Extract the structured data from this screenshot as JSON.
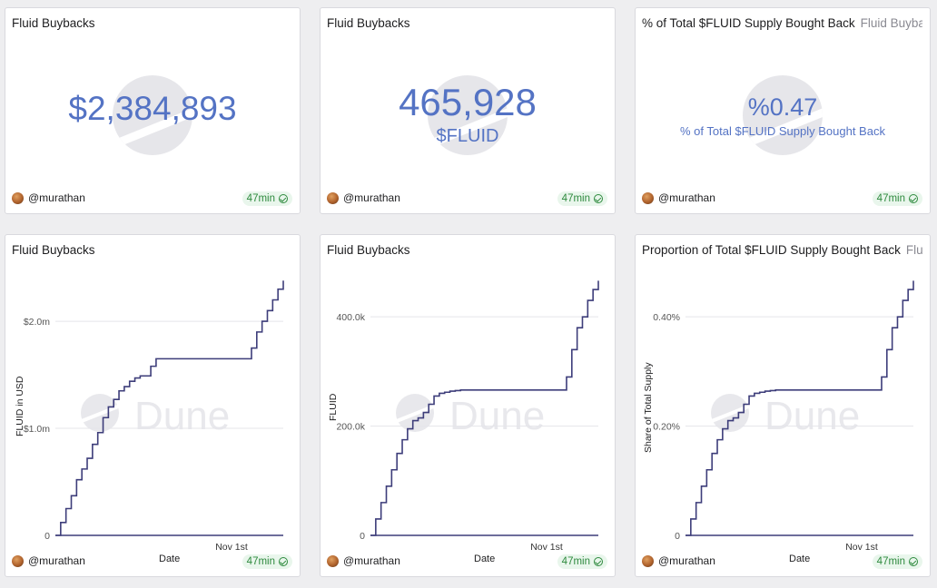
{
  "user": "@murathan",
  "refresh": "47min",
  "watermark": "Dune",
  "counters": [
    {
      "title": "Fluid Buybacks",
      "subtitle": "",
      "value": "$2,384,893",
      "label": ""
    },
    {
      "title": "Fluid Buybacks",
      "subtitle": "",
      "value": "465,928",
      "label": "$FLUID"
    },
    {
      "title": "% of Total $FLUID Supply Bought Back",
      "subtitle": "Fluid Buybacks",
      "value": "%0.47",
      "label": "% of Total $FLUID Supply Bought Back"
    }
  ],
  "chart_data": [
    {
      "type": "line",
      "title": "Fluid Buybacks",
      "subtitle": "",
      "xlabel": "Date",
      "ylabel": "FLUID in USD",
      "x_tick_labels": [
        "Nov 1st"
      ],
      "y_ticks": [
        0,
        1000000,
        2000000
      ],
      "y_tick_labels": [
        "0",
        "$1.0m",
        "$2.0m"
      ],
      "ylim": [
        0,
        2450000
      ],
      "x": [
        0,
        1,
        2,
        3,
        4,
        5,
        6,
        7,
        8,
        9,
        10,
        11,
        12,
        13,
        14,
        15,
        16,
        17,
        18,
        19,
        20,
        21,
        22,
        23,
        24,
        25,
        26,
        27,
        28,
        29,
        30,
        31,
        32,
        33,
        34,
        35,
        36,
        37,
        38,
        39,
        40,
        41,
        42,
        43
      ],
      "values": [
        0,
        120000,
        250000,
        370000,
        520000,
        620000,
        720000,
        850000,
        960000,
        1100000,
        1200000,
        1270000,
        1350000,
        1390000,
        1440000,
        1470000,
        1490000,
        1490000,
        1580000,
        1650000,
        1650000,
        1650000,
        1650000,
        1650000,
        1650000,
        1650000,
        1650000,
        1650000,
        1650000,
        1650000,
        1650000,
        1650000,
        1650000,
        1650000,
        1650000,
        1650000,
        1650000,
        1750000,
        1900000,
        2000000,
        2100000,
        2200000,
        2300000,
        2380000
      ]
    },
    {
      "type": "line",
      "title": "Fluid Buybacks",
      "subtitle": "",
      "xlabel": "Date",
      "ylabel": "FLUID",
      "x_tick_labels": [
        "Nov 1st"
      ],
      "y_ticks": [
        0,
        200000,
        400000
      ],
      "y_tick_labels": [
        "0",
        "200.0k",
        "400.0k"
      ],
      "ylim": [
        0,
        480000
      ],
      "x": [
        0,
        1,
        2,
        3,
        4,
        5,
        6,
        7,
        8,
        9,
        10,
        11,
        12,
        13,
        14,
        15,
        16,
        17,
        18,
        19,
        20,
        21,
        22,
        23,
        24,
        25,
        26,
        27,
        28,
        29,
        30,
        31,
        32,
        33,
        34,
        35,
        36,
        37,
        38,
        39,
        40,
        41,
        42,
        43
      ],
      "values": [
        0,
        30000,
        60000,
        90000,
        120000,
        150000,
        175000,
        195000,
        210000,
        215000,
        225000,
        240000,
        255000,
        260000,
        262000,
        264000,
        265000,
        266000,
        266000,
        266000,
        266000,
        266000,
        266000,
        266000,
        266000,
        266000,
        266000,
        266000,
        266000,
        266000,
        266000,
        266000,
        266000,
        266000,
        266000,
        266000,
        266000,
        290000,
        340000,
        380000,
        400000,
        430000,
        450000,
        466000
      ]
    },
    {
      "type": "line",
      "title": "Proportion of Total $FLUID Supply Bought Back",
      "subtitle": "Fluid Buybacks",
      "xlabel": "Date",
      "ylabel": "Share of Total Supply",
      "x_tick_labels": [
        "Nov 1st"
      ],
      "y_ticks": [
        0,
        0.2,
        0.4
      ],
      "y_tick_labels": [
        "0",
        "0.20%",
        "0.40%"
      ],
      "ylim": [
        0,
        0.48
      ],
      "x": [
        0,
        1,
        2,
        3,
        4,
        5,
        6,
        7,
        8,
        9,
        10,
        11,
        12,
        13,
        14,
        15,
        16,
        17,
        18,
        19,
        20,
        21,
        22,
        23,
        24,
        25,
        26,
        27,
        28,
        29,
        30,
        31,
        32,
        33,
        34,
        35,
        36,
        37,
        38,
        39,
        40,
        41,
        42,
        43
      ],
      "values": [
        0,
        0.03,
        0.06,
        0.09,
        0.12,
        0.15,
        0.175,
        0.195,
        0.21,
        0.215,
        0.225,
        0.24,
        0.255,
        0.26,
        0.262,
        0.264,
        0.265,
        0.266,
        0.266,
        0.266,
        0.266,
        0.266,
        0.266,
        0.266,
        0.266,
        0.266,
        0.266,
        0.266,
        0.266,
        0.266,
        0.266,
        0.266,
        0.266,
        0.266,
        0.266,
        0.266,
        0.266,
        0.29,
        0.34,
        0.38,
        0.4,
        0.43,
        0.45,
        0.466
      ]
    }
  ]
}
